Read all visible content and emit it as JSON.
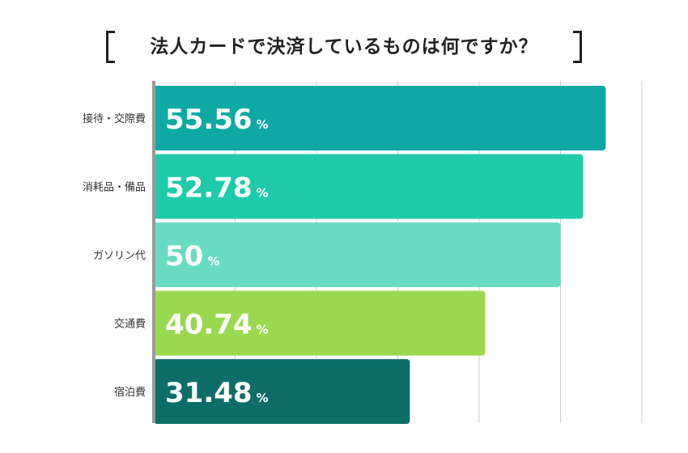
{
  "title": "法人カードで決済しているものは何ですか？",
  "chart_data": {
    "type": "bar",
    "orientation": "horizontal",
    "title": "法人カードで決済しているものは何ですか？",
    "categories": [
      "接待・交際費",
      "消耗品・備品",
      "ガソリン代",
      "交通費",
      "宿泊費"
    ],
    "values": [
      55.56,
      52.78,
      50,
      40.74,
      31.48
    ],
    "value_labels": [
      "55.56",
      "52.78",
      "50",
      "40.74",
      "31.48"
    ],
    "unit": "%",
    "colors": [
      "#0ea9a5",
      "#1fcba8",
      "#6adbc3",
      "#9ad94f",
      "#0d6e68"
    ],
    "xlim": [
      0,
      60
    ],
    "grid": true,
    "legend": "none"
  }
}
